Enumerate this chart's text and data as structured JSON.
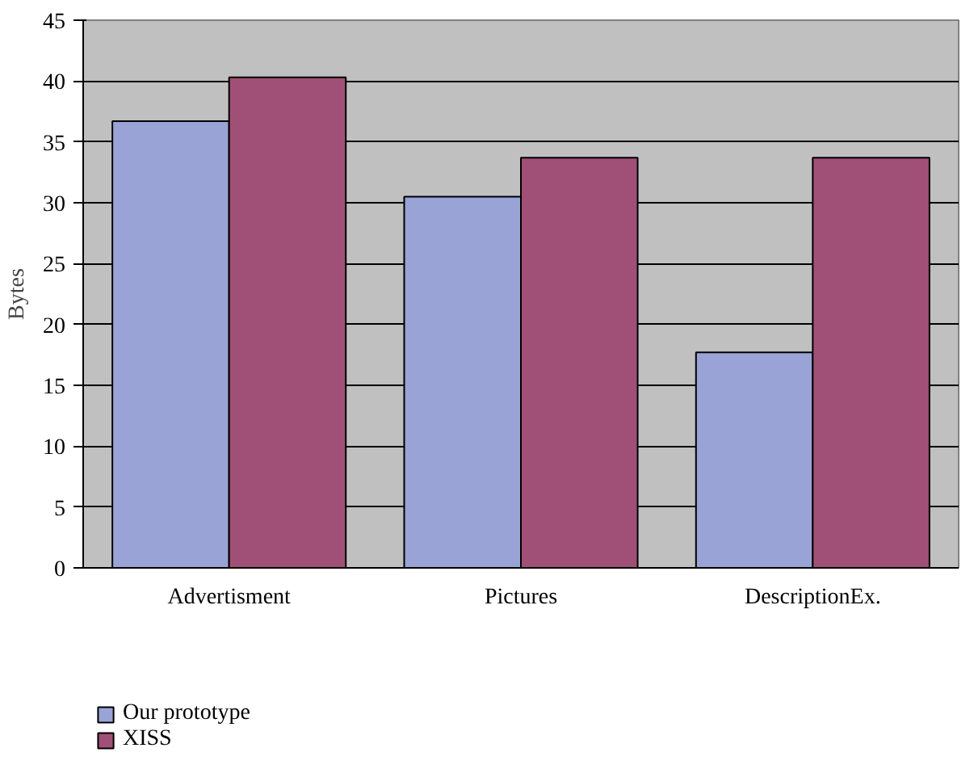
{
  "chart_data": {
    "type": "bar",
    "ylabel": "Bytes",
    "categories": [
      "Advertisment",
      "Pictures",
      "DescriptionEx."
    ],
    "series": [
      {
        "name": "Our prototype",
        "color": "#99a3d6",
        "values": [
          36.7,
          30.5,
          17.7
        ]
      },
      {
        "name": "XISS",
        "color": "#a05076",
        "values": [
          40.3,
          33.7,
          33.7
        ]
      }
    ],
    "ylim": [
      0,
      45
    ],
    "yticks": [
      0,
      5,
      10,
      15,
      20,
      25,
      30,
      35,
      40,
      45
    ],
    "grid": "y",
    "legend": "bottom left"
  }
}
